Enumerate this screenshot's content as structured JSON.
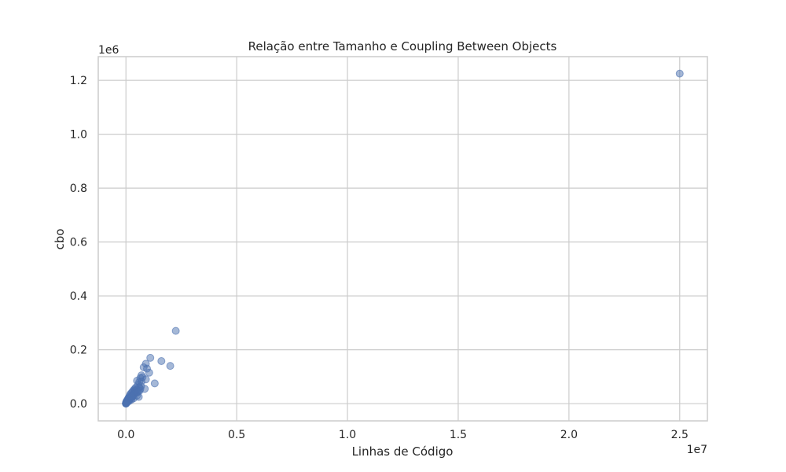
{
  "chart_data": {
    "type": "scatter",
    "title": "Relação entre Tamanho e Coupling Between Objects",
    "xlabel": "Linhas de Código",
    "ylabel": "cbo",
    "x_offset_label": "1e7",
    "y_offset_label": "1e6",
    "x_scale": 10000000,
    "y_scale": 1000000,
    "xlim": [
      -1250000,
      26250000
    ],
    "ylim": [
      -64000,
      1288000
    ],
    "x_ticks": [
      0,
      5000000,
      10000000,
      15000000,
      20000000,
      25000000
    ],
    "x_tick_labels": [
      "0.0",
      "0.5",
      "1.0",
      "1.5",
      "2.0",
      "2.5"
    ],
    "y_ticks": [
      0,
      200000,
      400000,
      600000,
      800000,
      1000000,
      1200000
    ],
    "y_tick_labels": [
      "0.0",
      "0.2",
      "0.4",
      "0.6",
      "0.8",
      "1.0",
      "1.2"
    ],
    "grid": true,
    "legend": "none",
    "colors": {
      "point": "#4c72b0",
      "grid": "#cccccc",
      "frame": "#cccccc",
      "text": "#262626"
    },
    "series": [
      {
        "x": [
          25000000,
          2250000,
          1100000,
          1600000,
          2000000,
          900000,
          950000,
          1050000,
          800000,
          1300000,
          700000,
          900000,
          650000,
          600000,
          550000,
          500000,
          450000,
          400000,
          350000,
          300000,
          250000,
          200000,
          180000,
          150000,
          120000,
          100000,
          80000,
          60000,
          40000,
          30000,
          20000,
          10000,
          5000,
          2000,
          1000,
          700000,
          750000,
          400000,
          450000,
          500000,
          300000,
          350000,
          200000,
          250000,
          150000,
          600000,
          650000,
          550000,
          850000,
          350000,
          300000,
          250000,
          220000,
          180000,
          160000,
          140000,
          110000,
          90000,
          70000,
          50000,
          35000,
          25000,
          15000,
          8000,
          3000,
          500,
          480000,
          420000,
          380000,
          320000,
          280000,
          520000,
          580000,
          620000,
          680000
        ],
        "y": [
          1225000,
          270000,
          170000,
          158000,
          140000,
          148000,
          130000,
          115000,
          135000,
          75000,
          105000,
          90000,
          95000,
          80000,
          70000,
          85000,
          60000,
          55000,
          50000,
          45000,
          40000,
          35000,
          30000,
          25000,
          22000,
          18000,
          15000,
          12000,
          10000,
          8000,
          6000,
          4000,
          2000,
          1000,
          500,
          82000,
          98000,
          48000,
          40000,
          30000,
          25000,
          20000,
          18000,
          15000,
          10000,
          60000,
          55000,
          45000,
          55000,
          35000,
          32000,
          28000,
          22000,
          20000,
          16000,
          14000,
          12000,
          9000,
          7000,
          5000,
          4000,
          3000,
          2500,
          1500,
          800,
          300,
          52000,
          45000,
          38000,
          30000,
          26000,
          42000,
          25000,
          48000,
          65000
        ]
      }
    ]
  }
}
